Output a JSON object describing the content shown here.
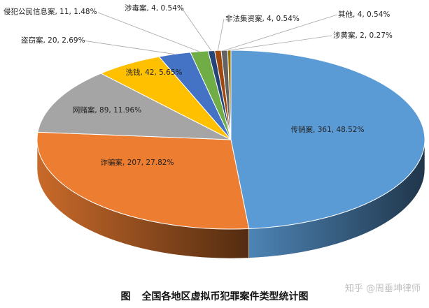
{
  "chart_data": {
    "type": "pie",
    "style": "3d",
    "caption": {
      "figure_label": "图",
      "title": "全国各地区虚拟币犯罪案件类型统计图"
    },
    "slices": [
      {
        "name": "传销案",
        "value": 361,
        "percent": "48.52%",
        "color": "#5b9bd5",
        "label": "传销案, 361, 48.52%"
      },
      {
        "name": "诈骗案",
        "value": 207,
        "percent": "27.82%",
        "color": "#ed7d31",
        "label": "诈骗案, 207, 27.82%"
      },
      {
        "name": "网赌案",
        "value": 89,
        "percent": "11.96%",
        "color": "#a5a5a5",
        "label": "网赌案, 89, 11.96%"
      },
      {
        "name": "洗钱",
        "value": 42,
        "percent": "5.65%",
        "color": "#ffc000",
        "label": "洗钱, 42, 5.65%"
      },
      {
        "name": "盗窃案",
        "value": 20,
        "percent": "2.69%",
        "color": "#4472c4",
        "label": "盗窃案, 20, 2.69%"
      },
      {
        "name": "侵犯公民信息案",
        "value": 11,
        "percent": "1.48%",
        "color": "#70ad47",
        "label": "侵犯公民信息案, 11, 1.48%"
      },
      {
        "name": "涉毒案",
        "value": 4,
        "percent": "0.54%",
        "color": "#264478",
        "label": "涉毒案, 4, 0.54%"
      },
      {
        "name": "非法集资案",
        "value": 4,
        "percent": "0.54%",
        "color": "#9e480e",
        "label": "非法集资案, 4, 0.54%"
      },
      {
        "name": "其他",
        "value": 4,
        "percent": "0.54%",
        "color": "#636363",
        "label": "其他, 4, 0.54%"
      },
      {
        "name": "涉黄案",
        "value": 2,
        "percent": "0.27%",
        "color": "#997300",
        "label": "涉黄案, 2, 0.27%"
      }
    ]
  },
  "watermark": "知乎 @周垂坤律师"
}
